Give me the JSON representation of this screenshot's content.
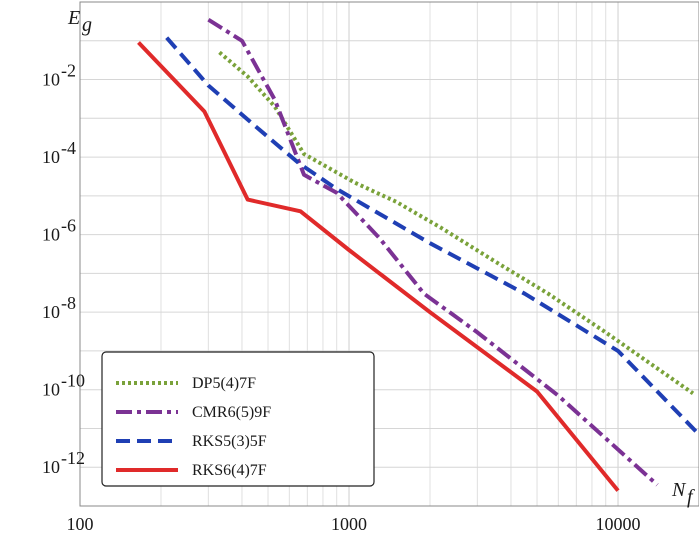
{
  "chart_data": {
    "type": "line",
    "xscale": "log",
    "yscale": "log",
    "xlim": [
      100,
      20000
    ],
    "ylim": [
      1e-13,
      1
    ],
    "grid": true,
    "legend_position": "bottom-left",
    "xlabel": {
      "main": "N",
      "sub": "f"
    },
    "ylabel": {
      "main": "E",
      "sub": "g"
    },
    "x_ticks": [
      {
        "value": 100,
        "label": "100"
      },
      {
        "value": 1000,
        "label": "1000"
      },
      {
        "value": 10000,
        "label": "10000"
      }
    ],
    "y_ticks": [
      {
        "value": 0.01,
        "base": "10",
        "exp": "-2"
      },
      {
        "value": 0.0001,
        "base": "10",
        "exp": "-4"
      },
      {
        "value": 1e-06,
        "base": "10",
        "exp": "-6"
      },
      {
        "value": 1e-08,
        "base": "10",
        "exp": "-8"
      },
      {
        "value": 1e-10,
        "base": "10",
        "exp": "-10"
      },
      {
        "value": 1e-12,
        "base": "10",
        "exp": "-12"
      }
    ],
    "series": [
      {
        "name": "DP5(4)7F",
        "color": "#7aa23a",
        "style": "dotted",
        "x": [
          330,
          420,
          530,
          680,
          1050,
          1500,
          2200,
          3500,
          5500,
          9000,
          19000
        ],
        "y": [
          0.05,
          0.012,
          0.002,
          0.00012,
          2.2e-05,
          7e-06,
          1.5e-06,
          2e-07,
          3e-08,
          3e-09,
          8e-11
        ]
      },
      {
        "name": "CMR6(5)9F",
        "color": "#7b3294",
        "style": "dashdot",
        "x": [
          300,
          400,
          530,
          680,
          900,
          1300,
          1900,
          3000,
          6000,
          14000
        ],
        "y": [
          0.35,
          0.1,
          0.003,
          3.5e-05,
          1.2e-05,
          8e-07,
          3e-08,
          3e-09,
          7e-11,
          3.5e-13
        ]
      },
      {
        "name": "RKS5(3)5F",
        "color": "#1f3fb4",
        "style": "dashed",
        "x": [
          210,
          300,
          440,
          650,
          900,
          2000,
          4500,
          10000,
          20000
        ],
        "y": [
          0.12,
          0.007,
          0.0007,
          7e-05,
          1.5e-05,
          6e-07,
          3e-08,
          1e-09,
          7e-12
        ]
      },
      {
        "name": "RKS6(4)7F",
        "color": "#e02a2a",
        "style": "solid",
        "x": [
          165,
          290,
          420,
          660,
          1000,
          2000,
          5000,
          10000
        ],
        "y": [
          0.09,
          0.0015,
          8e-06,
          4e-06,
          4e-07,
          1e-08,
          9e-11,
          2.5e-13
        ]
      }
    ]
  }
}
